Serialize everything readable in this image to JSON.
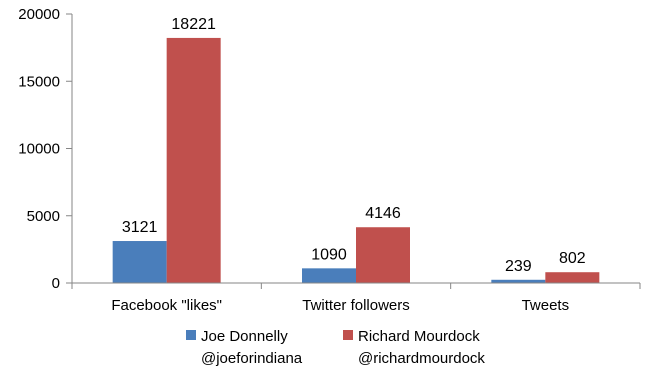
{
  "chart_data": {
    "type": "bar",
    "categories": [
      "Facebook \"likes\"",
      "Twitter followers",
      "Tweets"
    ],
    "series": [
      {
        "name": "Joe Donnelly @joeforindiana",
        "name_lines": [
          "Joe Donnelly",
          "@joeforindiana"
        ],
        "color": "#4a7ebb",
        "values": [
          3121,
          1090,
          239
        ],
        "labels": [
          "3121",
          "1090",
          "239"
        ]
      },
      {
        "name": "Richard Mourdock @richardmourdock",
        "name_lines": [
          "Richard Mourdock",
          "@richardmourdock"
        ],
        "color": "#c0504d",
        "values": [
          18221,
          4146,
          802
        ],
        "labels": [
          "18221",
          "4146",
          "802"
        ]
      }
    ],
    "ylim": [
      0,
      20000
    ],
    "yticks": [
      "0",
      "5000",
      "10000",
      "15000",
      "20000"
    ],
    "ytick_values": [
      0,
      5000,
      10000,
      15000,
      20000
    ],
    "grid": false,
    "legend_position": "bottom",
    "axis_color": "#868686"
  }
}
